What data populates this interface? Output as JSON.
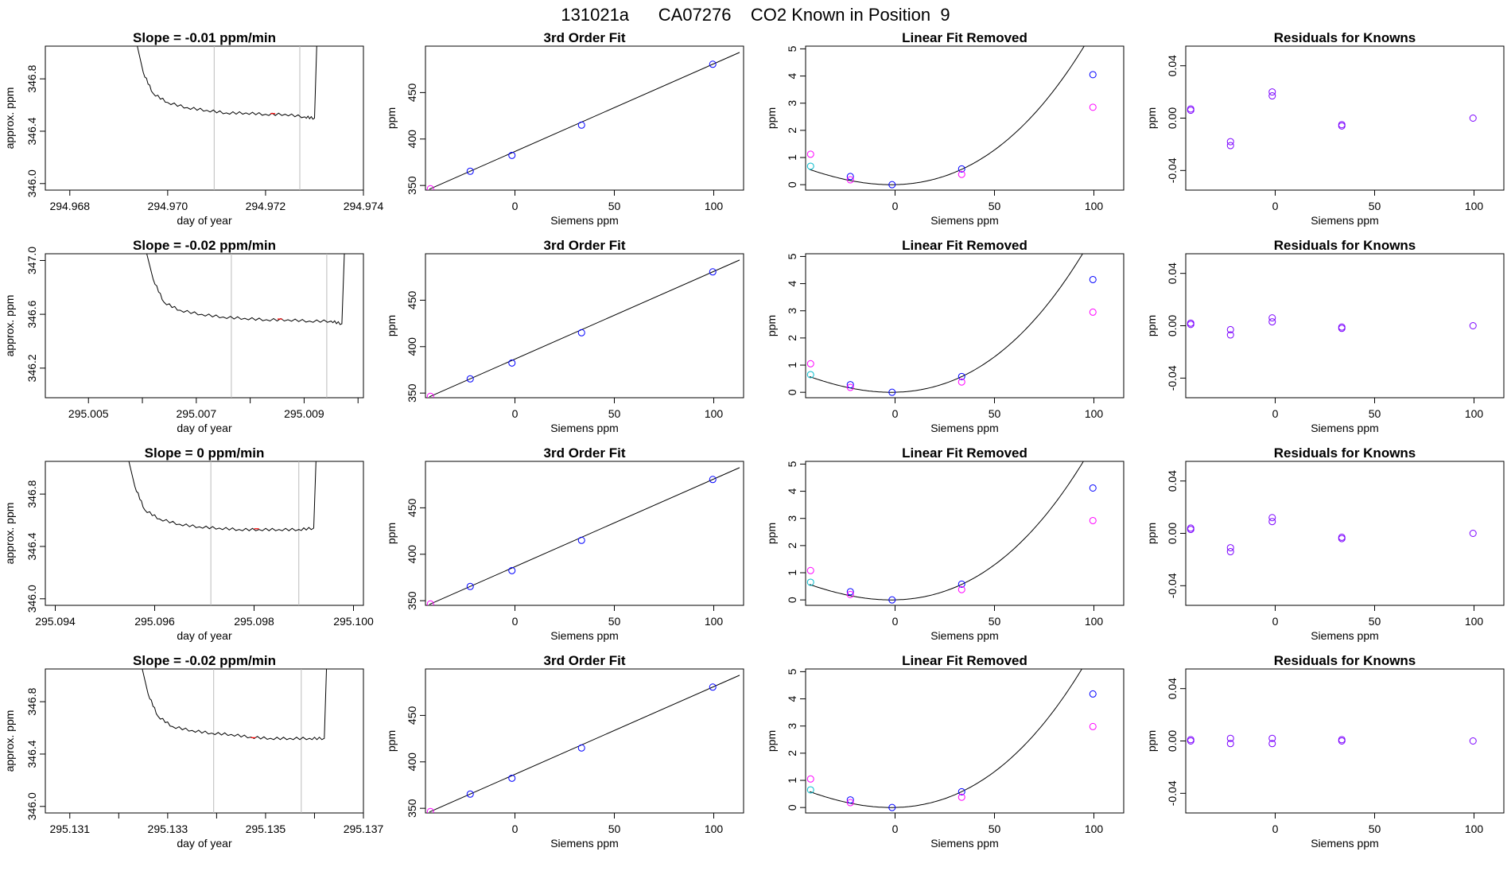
{
  "title": "131021a      CA07276    CO2 Known in Position  9",
  "colors": {
    "trace": "#000000",
    "vline": "#bbbbbb",
    "red": "#ff0000",
    "blue": "#0000ff",
    "magenta": "#ff00ff",
    "cyan": "#00bbcc",
    "purple": "#7b00ff",
    "fitline": "#000000"
  },
  "shared": {
    "siemens_x": [
      -42.5,
      -22.5,
      -1.5,
      33.5,
      99.5
    ],
    "siemens_xlim": [
      -45,
      115
    ],
    "siemens_xticks": [
      0,
      50,
      100
    ],
    "fit_ylim": [
      345,
      500
    ],
    "fit_yticks": [
      350,
      400,
      450
    ],
    "fit_ppm": [
      346.5,
      365.3,
      382.4,
      415.0,
      480.5
    ],
    "lin_ylim": [
      -0.2,
      5.1
    ],
    "lin_yticks": [
      0,
      1,
      2,
      3,
      4,
      5
    ],
    "res_ylim": [
      -0.055,
      0.055
    ],
    "res_yticks": [
      -0.04,
      0.0,
      0.04
    ],
    "res_ytick_labels": [
      "-0.04",
      "0.00",
      "0.04"
    ]
  },
  "chart_data": [
    {
      "type": "line",
      "row": 0,
      "title": "Slope =  -0.01  ppm/min",
      "xlabel": "day of year",
      "ylabel": "approx. ppm",
      "xlim": [
        294.9675,
        294.974
      ],
      "ylim": [
        345.95,
        347.05
      ],
      "xticks": [
        294.968,
        294.97,
        294.972,
        294.974
      ],
      "xtick_labels": [
        "294.968",
        "294.970",
        "294.972",
        "294.974"
      ],
      "yticks": [
        346.0,
        346.4,
        346.8
      ],
      "ytick_labels": [
        "346.0",
        "346.4",
        "346.8"
      ],
      "trace_x": [
        294.96935,
        294.9695,
        294.9697,
        294.97,
        294.9704,
        294.9708,
        294.9712,
        294.9716,
        294.972,
        294.9724,
        294.9728,
        294.973,
        294.97305
      ],
      "trace_y": [
        347.1,
        346.85,
        346.69,
        346.62,
        346.58,
        346.56,
        346.54,
        346.54,
        346.53,
        346.53,
        346.51,
        346.5,
        347.1
      ],
      "vlines": [
        294.97095,
        294.9727
      ],
      "marker_x": 294.97215,
      "marker_y": 346.535
    },
    {
      "type": "scatter",
      "row": 0,
      "title": "3rd Order Fit",
      "xlabel": "Siemens ppm",
      "ylabel": "ppm",
      "points": [
        {
          "x": -42.5,
          "y": 346.5,
          "color": "magenta"
        },
        {
          "x": -22.5,
          "y": 365.3,
          "color": "blue"
        },
        {
          "x": -1.5,
          "y": 382.4,
          "color": "blue"
        },
        {
          "x": 33.5,
          "y": 415.0,
          "color": "blue"
        },
        {
          "x": 99.5,
          "y": 480.5,
          "color": "blue"
        }
      ]
    },
    {
      "type": "scatter",
      "row": 0,
      "title": "Linear Fit Removed",
      "xlabel": "Siemens ppm",
      "ylabel": "ppm",
      "curve": {
        "vertex_x": -2,
        "a": 0.000395,
        "b": 1.5e-06
      },
      "points": [
        {
          "x": -42.5,
          "y": 0.68,
          "color": "cyan"
        },
        {
          "x": -42.5,
          "y": 1.12,
          "color": "magenta"
        },
        {
          "x": -22.5,
          "y": 0.3,
          "color": "blue"
        },
        {
          "x": -22.5,
          "y": 0.18,
          "color": "magenta"
        },
        {
          "x": -1.5,
          "y": 0.0,
          "color": "blue"
        },
        {
          "x": 33.5,
          "y": 0.58,
          "color": "blue"
        },
        {
          "x": 33.5,
          "y": 0.38,
          "color": "magenta"
        },
        {
          "x": 99.5,
          "y": 4.05,
          "color": "blue"
        },
        {
          "x": 99.5,
          "y": 2.85,
          "color": "magenta"
        }
      ]
    },
    {
      "type": "scatter",
      "row": 0,
      "title": "Residuals for Knowns",
      "xlabel": "Siemens ppm",
      "ylabel": "ppm",
      "points": [
        {
          "x": -42.5,
          "y": 0.006,
          "color": "purple"
        },
        {
          "x": -42.5,
          "y": 0.007,
          "color": "purple"
        },
        {
          "x": -22.5,
          "y": -0.018,
          "color": "purple"
        },
        {
          "x": -22.5,
          "y": -0.021,
          "color": "purple"
        },
        {
          "x": -1.5,
          "y": 0.017,
          "color": "purple"
        },
        {
          "x": -1.5,
          "y": 0.02,
          "color": "purple"
        },
        {
          "x": 33.5,
          "y": -0.005,
          "color": "purple"
        },
        {
          "x": 33.5,
          "y": -0.006,
          "color": "purple"
        },
        {
          "x": 99.5,
          "y": 0.0,
          "color": "purple"
        }
      ]
    },
    {
      "type": "line",
      "row": 1,
      "title": "Slope =  -0.02  ppm/min",
      "xlabel": "day of year",
      "ylabel": "approx. ppm",
      "xlim": [
        295.0042,
        295.0101
      ],
      "ylim": [
        345.98,
        347.05
      ],
      "xticks": [
        295.005,
        295.006,
        295.007,
        295.008,
        295.009,
        295.01
      ],
      "xtick_labels": [
        "295.005",
        "",
        "295.007",
        "",
        "295.009",
        ""
      ],
      "yticks": [
        346.2,
        346.6,
        347.0
      ],
      "ytick_labels": [
        "346.2",
        "346.6",
        "347.0"
      ],
      "trace_x": [
        295.00605,
        295.0062,
        295.0064,
        295.0067,
        295.0071,
        295.0075,
        295.0079,
        295.0083,
        295.0087,
        295.0091,
        295.0095,
        295.0097,
        295.00975
      ],
      "trace_y": [
        347.1,
        346.86,
        346.69,
        346.63,
        346.6,
        346.58,
        346.57,
        346.56,
        346.56,
        346.55,
        346.55,
        346.53,
        347.1
      ],
      "vlines": [
        295.00765,
        295.00942
      ],
      "marker_x": 295.00855,
      "marker_y": 346.565
    },
    {
      "type": "scatter",
      "row": 1,
      "title": "3rd Order Fit",
      "xlabel": "Siemens ppm",
      "ylabel": "ppm",
      "points": [
        {
          "x": -42.5,
          "y": 346.5,
          "color": "magenta"
        },
        {
          "x": -22.5,
          "y": 365.3,
          "color": "blue"
        },
        {
          "x": -1.5,
          "y": 382.4,
          "color": "blue"
        },
        {
          "x": 33.5,
          "y": 415.0,
          "color": "blue"
        },
        {
          "x": 99.5,
          "y": 480.5,
          "color": "blue"
        }
      ]
    },
    {
      "type": "scatter",
      "row": 1,
      "title": "Linear Fit Removed",
      "xlabel": "Siemens ppm",
      "ylabel": "ppm",
      "curve": {
        "vertex_x": -2,
        "a": 0.000405,
        "b": 1.5e-06
      },
      "points": [
        {
          "x": -42.5,
          "y": 0.65,
          "color": "cyan"
        },
        {
          "x": -42.5,
          "y": 1.05,
          "color": "magenta"
        },
        {
          "x": -22.5,
          "y": 0.28,
          "color": "blue"
        },
        {
          "x": -22.5,
          "y": 0.18,
          "color": "magenta"
        },
        {
          "x": -1.5,
          "y": 0.0,
          "color": "blue"
        },
        {
          "x": 33.5,
          "y": 0.58,
          "color": "blue"
        },
        {
          "x": 33.5,
          "y": 0.38,
          "color": "magenta"
        },
        {
          "x": 99.5,
          "y": 4.15,
          "color": "blue"
        },
        {
          "x": 99.5,
          "y": 2.95,
          "color": "magenta"
        }
      ]
    },
    {
      "type": "scatter",
      "row": 1,
      "title": "Residuals for Knowns",
      "xlabel": "Siemens ppm",
      "ylabel": "ppm",
      "points": [
        {
          "x": -42.5,
          "y": 0.001,
          "color": "purple"
        },
        {
          "x": -42.5,
          "y": 0.002,
          "color": "purple"
        },
        {
          "x": -22.5,
          "y": -0.003,
          "color": "purple"
        },
        {
          "x": -22.5,
          "y": -0.007,
          "color": "purple"
        },
        {
          "x": -1.5,
          "y": 0.003,
          "color": "purple"
        },
        {
          "x": -1.5,
          "y": 0.006,
          "color": "purple"
        },
        {
          "x": 33.5,
          "y": -0.001,
          "color": "purple"
        },
        {
          "x": 33.5,
          "y": -0.002,
          "color": "purple"
        },
        {
          "x": 99.5,
          "y": 0.0,
          "color": "purple"
        }
      ]
    },
    {
      "type": "line",
      "row": 2,
      "title": "Slope =  0  ppm/min",
      "xlabel": "day of year",
      "ylabel": "approx. ppm",
      "xlim": [
        295.0938,
        295.1002
      ],
      "ylim": [
        345.95,
        347.05
      ],
      "xticks": [
        295.094,
        295.096,
        295.098,
        295.1
      ],
      "xtick_labels": [
        "295.094",
        "295.096",
        "295.098",
        "295.100"
      ],
      "yticks": [
        346.0,
        346.4,
        346.8
      ],
      "ytick_labels": [
        "346.0",
        "346.4",
        "346.8"
      ],
      "trace_x": [
        295.09545,
        295.0956,
        295.0958,
        295.0961,
        295.0965,
        295.0969,
        295.0973,
        295.0977,
        295.0981,
        295.0985,
        295.0989,
        295.0992,
        295.09925
      ],
      "trace_y": [
        347.1,
        346.86,
        346.68,
        346.61,
        346.57,
        346.55,
        346.54,
        346.53,
        346.53,
        346.53,
        346.53,
        346.54,
        347.1
      ],
      "vlines": [
        295.09713,
        295.0989
      ],
      "marker_x": 295.09805,
      "marker_y": 346.535
    },
    {
      "type": "scatter",
      "row": 2,
      "title": "3rd Order Fit",
      "xlabel": "Siemens ppm",
      "ylabel": "ppm",
      "points": [
        {
          "x": -42.5,
          "y": 346.5,
          "color": "magenta"
        },
        {
          "x": -22.5,
          "y": 365.3,
          "color": "blue"
        },
        {
          "x": -1.5,
          "y": 382.4,
          "color": "blue"
        },
        {
          "x": 33.5,
          "y": 415.0,
          "color": "blue"
        },
        {
          "x": 99.5,
          "y": 480.5,
          "color": "blue"
        }
      ]
    },
    {
      "type": "scatter",
      "row": 2,
      "title": "Linear Fit Removed",
      "xlabel": "Siemens ppm",
      "ylabel": "ppm",
      "curve": {
        "vertex_x": -2,
        "a": 0.0004,
        "b": 1.5e-06
      },
      "points": [
        {
          "x": -42.5,
          "y": 0.65,
          "color": "cyan"
        },
        {
          "x": -42.5,
          "y": 1.08,
          "color": "magenta"
        },
        {
          "x": -22.5,
          "y": 0.3,
          "color": "blue"
        },
        {
          "x": -22.5,
          "y": 0.2,
          "color": "magenta"
        },
        {
          "x": -1.5,
          "y": 0.0,
          "color": "blue"
        },
        {
          "x": 33.5,
          "y": 0.58,
          "color": "blue"
        },
        {
          "x": 33.5,
          "y": 0.38,
          "color": "magenta"
        },
        {
          "x": 99.5,
          "y": 4.12,
          "color": "blue"
        },
        {
          "x": 99.5,
          "y": 2.92,
          "color": "magenta"
        }
      ]
    },
    {
      "type": "scatter",
      "row": 2,
      "title": "Residuals for Knowns",
      "xlabel": "Siemens ppm",
      "ylabel": "ppm",
      "points": [
        {
          "x": -42.5,
          "y": 0.003,
          "color": "purple"
        },
        {
          "x": -42.5,
          "y": 0.004,
          "color": "purple"
        },
        {
          "x": -22.5,
          "y": -0.011,
          "color": "purple"
        },
        {
          "x": -22.5,
          "y": -0.014,
          "color": "purple"
        },
        {
          "x": -1.5,
          "y": 0.009,
          "color": "purple"
        },
        {
          "x": -1.5,
          "y": 0.012,
          "color": "purple"
        },
        {
          "x": 33.5,
          "y": -0.003,
          "color": "purple"
        },
        {
          "x": 33.5,
          "y": -0.004,
          "color": "purple"
        },
        {
          "x": 99.5,
          "y": 0.0,
          "color": "purple"
        }
      ]
    },
    {
      "type": "line",
      "row": 3,
      "title": "Slope =  -0.02  ppm/min",
      "xlabel": "day of year",
      "ylabel": "approx. ppm",
      "xlim": [
        295.1305,
        295.137
      ],
      "ylim": [
        345.95,
        347.05
      ],
      "xticks": [
        295.131,
        295.132,
        295.133,
        295.134,
        295.135,
        295.136,
        295.137
      ],
      "xtick_labels": [
        "295.131",
        "",
        "295.133",
        "",
        "295.135",
        "",
        "295.137"
      ],
      "yticks": [
        346.0,
        346.4,
        346.8
      ],
      "ytick_labels": [
        "346.0",
        "346.4",
        "346.8"
      ],
      "trace_x": [
        295.13245,
        295.1326,
        295.1328,
        295.1331,
        295.1335,
        295.1339,
        295.1343,
        295.1347,
        295.1351,
        295.1355,
        295.1359,
        295.1362,
        295.13625
      ],
      "trace_y": [
        347.1,
        346.86,
        346.69,
        346.61,
        346.58,
        346.56,
        346.55,
        346.53,
        346.52,
        346.52,
        346.52,
        346.52,
        347.1
      ],
      "vlines": [
        295.13394,
        295.13573
      ],
      "marker_x": 295.13475,
      "marker_y": 346.525
    },
    {
      "type": "scatter",
      "row": 3,
      "title": "3rd Order Fit",
      "xlabel": "Siemens ppm",
      "ylabel": "ppm",
      "points": [
        {
          "x": -42.5,
          "y": 346.5,
          "color": "magenta"
        },
        {
          "x": -22.5,
          "y": 365.3,
          "color": "blue"
        },
        {
          "x": -1.5,
          "y": 382.4,
          "color": "blue"
        },
        {
          "x": 33.5,
          "y": 415.0,
          "color": "blue"
        },
        {
          "x": 99.5,
          "y": 480.5,
          "color": "blue"
        }
      ]
    },
    {
      "type": "scatter",
      "row": 3,
      "title": "Linear Fit Removed",
      "xlabel": "Siemens ppm",
      "ylabel": "ppm",
      "curve": {
        "vertex_x": -2,
        "a": 0.00041,
        "b": 1.5e-06
      },
      "points": [
        {
          "x": -42.5,
          "y": 0.65,
          "color": "cyan"
        },
        {
          "x": -42.5,
          "y": 1.05,
          "color": "magenta"
        },
        {
          "x": -22.5,
          "y": 0.28,
          "color": "blue"
        },
        {
          "x": -22.5,
          "y": 0.18,
          "color": "magenta"
        },
        {
          "x": -1.5,
          "y": 0.0,
          "color": "blue"
        },
        {
          "x": 33.5,
          "y": 0.58,
          "color": "blue"
        },
        {
          "x": 33.5,
          "y": 0.38,
          "color": "magenta"
        },
        {
          "x": 99.5,
          "y": 4.18,
          "color": "blue"
        },
        {
          "x": 99.5,
          "y": 2.98,
          "color": "magenta"
        }
      ]
    },
    {
      "type": "scatter",
      "row": 3,
      "title": "Residuals for Knowns",
      "xlabel": "Siemens ppm",
      "ylabel": "ppm",
      "points": [
        {
          "x": -42.5,
          "y": 0.0,
          "color": "purple"
        },
        {
          "x": -42.5,
          "y": 0.001,
          "color": "purple"
        },
        {
          "x": -22.5,
          "y": 0.002,
          "color": "purple"
        },
        {
          "x": -22.5,
          "y": -0.002,
          "color": "purple"
        },
        {
          "x": -1.5,
          "y": 0.002,
          "color": "purple"
        },
        {
          "x": -1.5,
          "y": -0.002,
          "color": "purple"
        },
        {
          "x": 33.5,
          "y": 0.0,
          "color": "purple"
        },
        {
          "x": 33.5,
          "y": 0.001,
          "color": "purple"
        },
        {
          "x": 99.5,
          "y": 0.0,
          "color": "purple"
        }
      ]
    }
  ]
}
